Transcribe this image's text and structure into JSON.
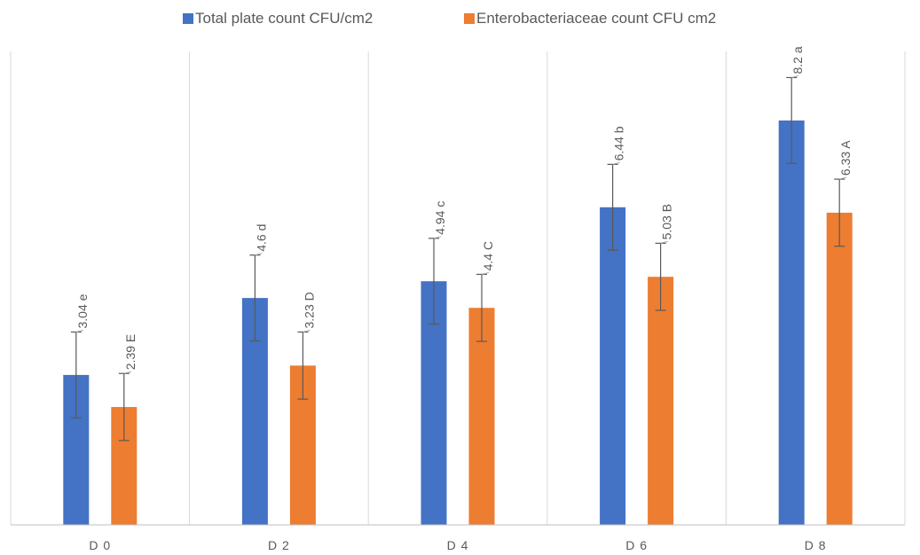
{
  "chart_data": {
    "type": "bar",
    "categories": [
      "D0",
      "D2",
      "D4",
      "D6",
      "D8"
    ],
    "series": [
      {
        "name": "Total plate count CFU/cm2",
        "color": "#4472C4",
        "values": [
          3.04,
          4.6,
          4.94,
          6.44,
          8.2
        ],
        "labels": [
          "3.04 e",
          "4.6 d",
          "4.94 c",
          "6.44 b",
          "8.2 a"
        ],
        "error": [
          0.87,
          0.87,
          0.87,
          0.87,
          0.87
        ]
      },
      {
        "name": "Enterobacteriaceae count CFU cm2",
        "color": "#ED7D31",
        "values": [
          2.39,
          3.23,
          4.4,
          5.03,
          6.33
        ],
        "labels": [
          "2.39 E",
          "3.23 D",
          "4.4 C",
          "5.03 B",
          "6.33 A"
        ],
        "error": [
          0.68,
          0.68,
          0.68,
          0.68,
          0.68
        ]
      }
    ],
    "category_labels": [
      "D 0",
      "D 2",
      "D 4",
      "D 6",
      "D 8"
    ],
    "ylim": [
      0,
      9.6
    ],
    "grid": "vertical category separators",
    "legend": "top-center",
    "xlabel": "",
    "ylabel": ""
  }
}
